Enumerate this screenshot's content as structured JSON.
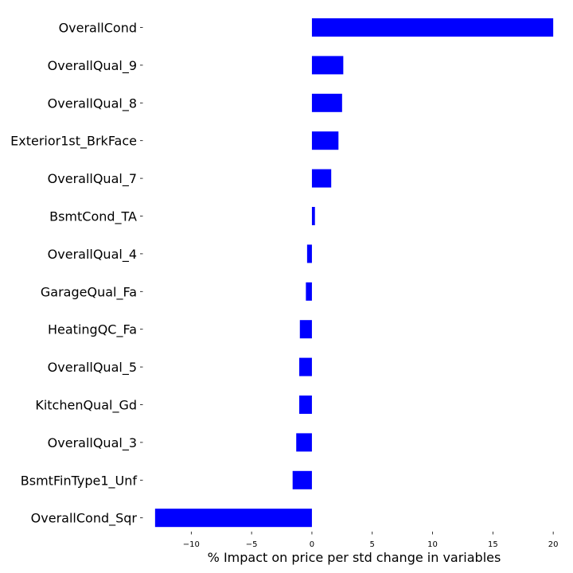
{
  "chart_data": {
    "type": "bar",
    "orientation": "horizontal",
    "categories": [
      "OverallCond",
      "OverallQual_9",
      "OverallQual_8",
      "Exterior1st_BrkFace",
      "OverallQual_7",
      "BsmtCond_TA",
      "OverallQual_4",
      "GarageQual_Fa",
      "HeatingQC_Fa",
      "OverallQual_5",
      "KitchenQual_Gd",
      "OverallQual_3",
      "BsmtFinType1_Unf",
      "OverallCond_Sqr"
    ],
    "values": [
      20.0,
      2.6,
      2.5,
      2.2,
      1.6,
      0.25,
      -0.4,
      -0.5,
      -1.0,
      -1.05,
      -1.05,
      -1.3,
      -1.6,
      -13.0
    ],
    "xlabel": "% Impact on price per std change in variables",
    "ylabel": "",
    "xlim": [
      -13.65,
      20.65
    ],
    "xticks": [
      -10,
      -5,
      0,
      5,
      10,
      15,
      20
    ],
    "xtick_labels": [
      "−10",
      "−5",
      "0",
      "5",
      "10",
      "15",
      "20"
    ],
    "bar_color": "#0000ff",
    "grid": false
  }
}
